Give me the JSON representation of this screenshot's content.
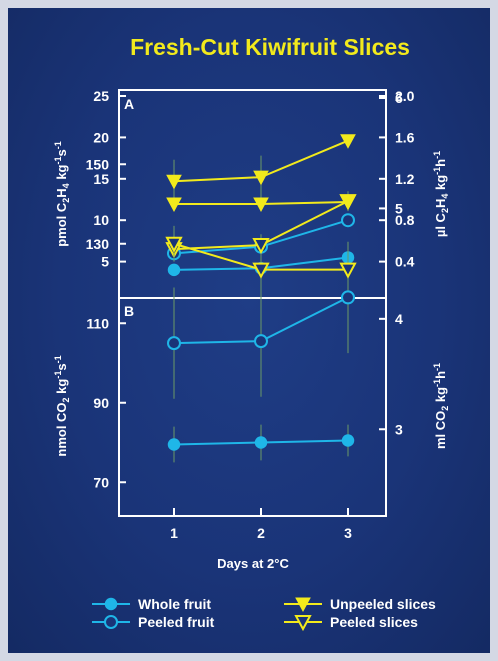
{
  "colors": {
    "background": "#1a3478",
    "title": "#f2ea1c",
    "axes": "#ffffff",
    "cyan": "#1fb6e8",
    "yellow": "#f2ea1c",
    "error_bar": "#6b9a66"
  },
  "chart_data": {
    "type": "line",
    "title": "Fresh-Cut Kiwifruit Slices",
    "x": [
      1,
      2,
      3
    ],
    "xlabel": "Days at 2°C",
    "x_ticks": [
      "1",
      "2",
      "3"
    ],
    "legend": {
      "placement": "bottom",
      "entries": [
        {
          "label": "Whole fruit",
          "color": "#1fb6e8",
          "marker": "filled-circle"
        },
        {
          "label": "Unpeeled slices",
          "color": "#f2ea1c",
          "marker": "filled-down-triangle"
        },
        {
          "label": "Peeled fruit",
          "color": "#1fb6e8",
          "marker": "open-circle"
        },
        {
          "label": "Peeled slices",
          "color": "#f2ea1c",
          "marker": "open-down-triangle"
        }
      ]
    },
    "panels": [
      {
        "label": "A",
        "ylabel_left": "pmol C2H4 kg-1s-1",
        "ylabel_right": "µl C2H4 kg-1h-1",
        "ylim_left": [
          0,
          25
        ],
        "yticks_left": [
          "5",
          "10",
          "15",
          "20",
          "25"
        ],
        "ylim_right": [
          0,
          2.0
        ],
        "yticks_right": [
          "0.4",
          "0.8",
          "1.2",
          "1.6",
          "2.0"
        ],
        "grid": false,
        "series": [
          {
            "name": "Whole fruit",
            "marker": "filled-circle",
            "color": "#1fb6e8",
            "values": [
              4.0,
              4.2,
              5.5
            ],
            "err": [
              0.3,
              0.3,
              0.4
            ]
          },
          {
            "name": "Peeled fruit",
            "marker": "open-circle",
            "color": "#1fb6e8",
            "values": [
              6.0,
              6.8,
              10.0
            ],
            "err": [
              0.6,
              1.4,
              0.8
            ]
          },
          {
            "name": "Peeled slices",
            "marker": "open-down-triangle",
            "color": "#f2ea1c",
            "values": [
              6.5,
              7.0,
              12.3
            ],
            "err": [
              1.0,
              1.3,
              1.2
            ]
          },
          {
            "name": "Unpeeled slices",
            "marker": "filled-down-triangle",
            "color": "#f2ea1c",
            "values": [
              14.7,
              15.2,
              19.6
            ],
            "err": [
              2.6,
              2.6,
              0.5
            ]
          }
        ]
      },
      {
        "label": "B",
        "ylabel_left": "nmol CO2 kg-1s-1",
        "ylabel_right": "ml CO2 kg-1h-1",
        "ylim_left": [
          60,
          160
        ],
        "yticks_left": [
          "70",
          "90",
          "110",
          "130",
          "150"
        ],
        "ylim_right": [
          2.4,
          6.4
        ],
        "yticks_right": [
          "3",
          "4",
          "5",
          "6"
        ],
        "grid": false,
        "series": [
          {
            "name": "Whole fruit",
            "marker": "filled-circle",
            "color": "#1fb6e8",
            "values": [
              79.5,
              80.0,
              80.5
            ],
            "err": [
              4.5,
              4.5,
              4.0
            ]
          },
          {
            "name": "Peeled fruit",
            "marker": "open-circle",
            "color": "#1fb6e8",
            "values": [
              105.0,
              105.5,
              116.5
            ],
            "err": [
              14.0,
              14.0,
              14.0
            ]
          },
          {
            "name": "Peeled slices",
            "marker": "open-down-triangle",
            "color": "#f2ea1c",
            "values": [
              130.0,
              123.5,
              123.5
            ],
            "err": [
              4.5,
              4.0,
              4.5
            ]
          },
          {
            "name": "Unpeeled slices",
            "marker": "filled-down-triangle",
            "color": "#f2ea1c",
            "values": [
              140.0,
              140.0,
              140.5
            ],
            "err": [
              1.5,
              1.5,
              1.5
            ]
          }
        ]
      }
    ]
  }
}
